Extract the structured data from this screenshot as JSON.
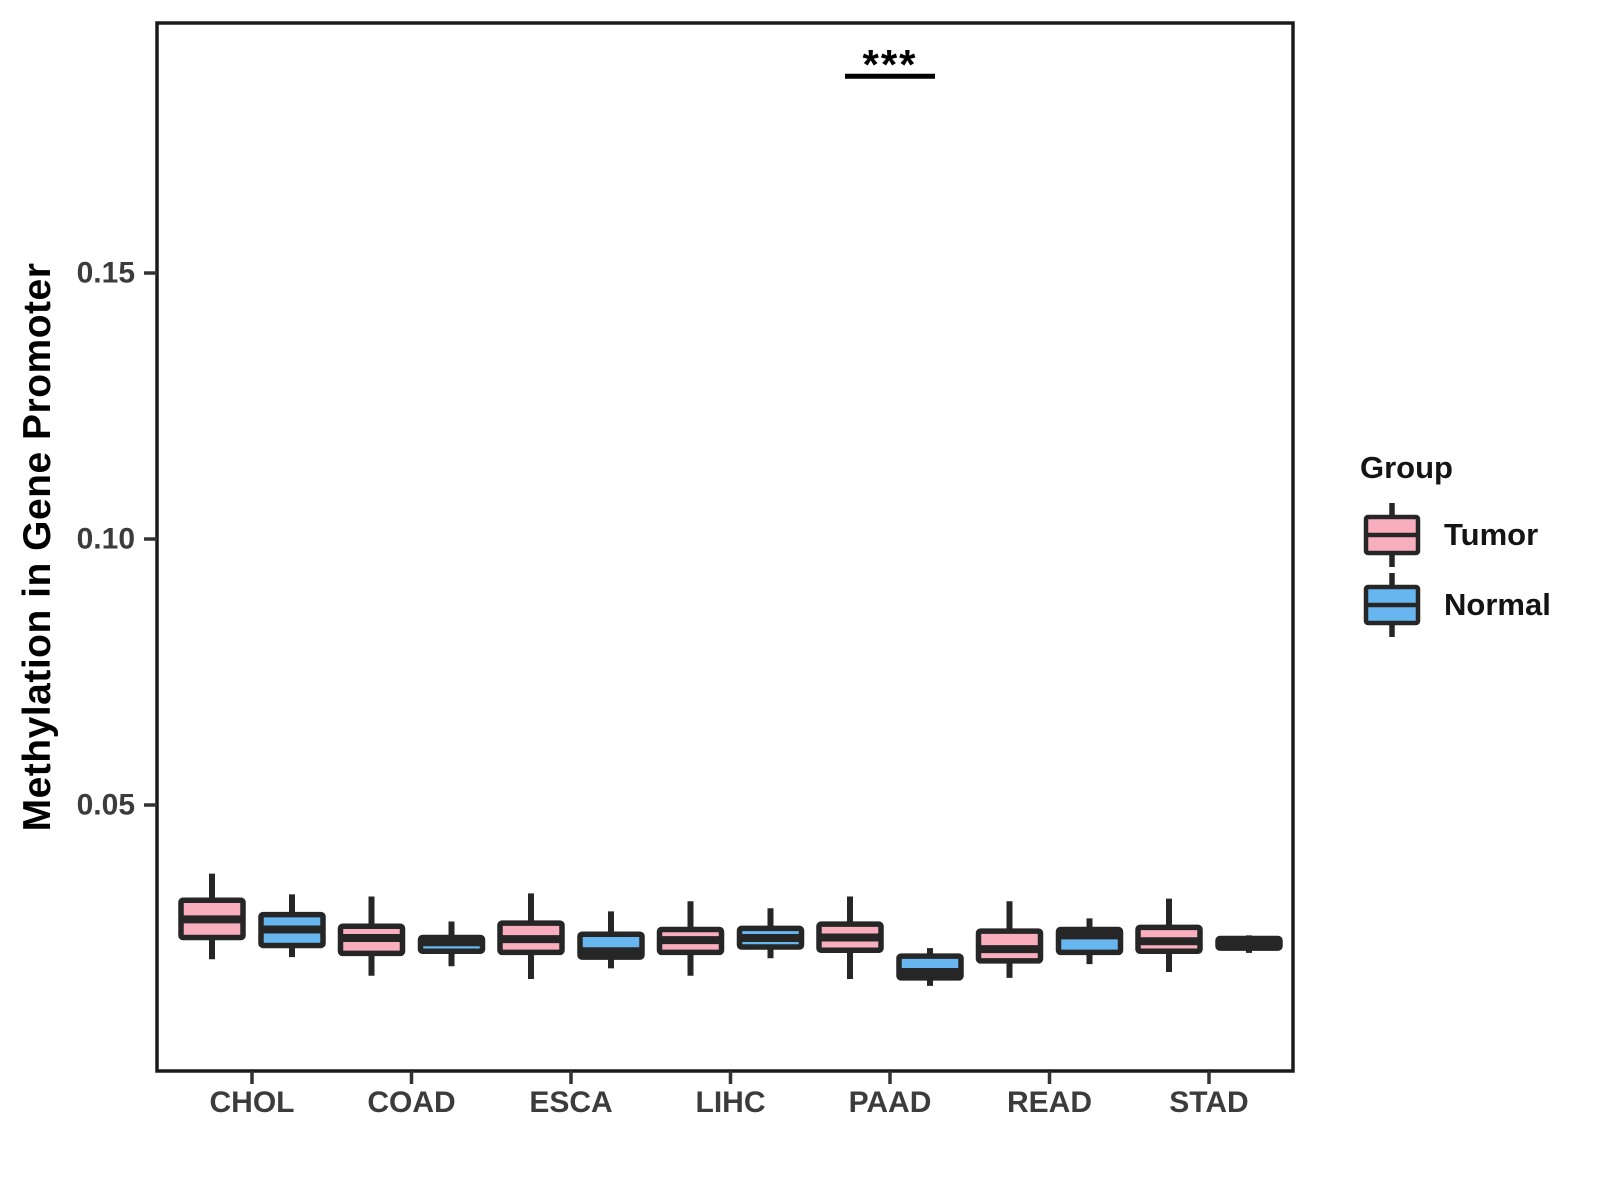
{
  "figure": {
    "y_axis_title": "Methylation in Gene Promoter",
    "legend_title": "Group"
  },
  "colors": {
    "tumor_fill": "#F9AEBD",
    "normal_fill": "#68B6F0",
    "box_outline": "#262626",
    "panel_border": "#1a1a1a",
    "tick_text": "#3c3c3c",
    "background": "#ffffff"
  },
  "chart_data": {
    "type": "boxplot",
    "title": "",
    "xlabel": "",
    "ylabel": "Methylation in Gene Promoter",
    "categories": [
      "CHOL",
      "COAD",
      "ESCA",
      "LIHC",
      "PAAD",
      "READ",
      "STAD"
    ],
    "ylim": [
      0,
      0.197
    ],
    "yticks": [
      {
        "value": 0.05,
        "label": "0.05"
      },
      {
        "value": 0.1,
        "label": "0.10"
      },
      {
        "value": 0.15,
        "label": "0.15"
      }
    ],
    "grid": false,
    "legend_title": "Group",
    "legend_position": "right",
    "series": [
      {
        "name": "Tumor",
        "color": "#F9AEBD",
        "boxes": [
          {
            "category": "CHOL",
            "whisker_low": 0.021,
            "q1": 0.0251,
            "median": 0.0285,
            "q3": 0.0321,
            "whisker_high": 0.0371
          },
          {
            "category": "COAD",
            "whisker_low": 0.0179,
            "q1": 0.0221,
            "median": 0.025,
            "q3": 0.0272,
            "whisker_high": 0.0328
          },
          {
            "category": "ESCA",
            "whisker_low": 0.0173,
            "q1": 0.0223,
            "median": 0.0248,
            "q3": 0.0278,
            "whisker_high": 0.0334
          },
          {
            "category": "LIHC",
            "whisker_low": 0.0179,
            "q1": 0.0223,
            "median": 0.0246,
            "q3": 0.0266,
            "whisker_high": 0.0319
          },
          {
            "category": "PAAD",
            "whisker_low": 0.0173,
            "q1": 0.0227,
            "median": 0.0251,
            "q3": 0.0276,
            "whisker_high": 0.0328
          },
          {
            "category": "READ",
            "whisker_low": 0.0175,
            "q1": 0.0207,
            "median": 0.0229,
            "q3": 0.0263,
            "whisker_high": 0.0319
          },
          {
            "category": "STAD",
            "whisker_low": 0.0186,
            "q1": 0.0225,
            "median": 0.0244,
            "q3": 0.027,
            "whisker_high": 0.0324
          }
        ]
      },
      {
        "name": "Normal",
        "color": "#68B6F0",
        "boxes": [
          {
            "category": "CHOL",
            "whisker_low": 0.0214,
            "q1": 0.0236,
            "median": 0.0266,
            "q3": 0.0294,
            "whisker_high": 0.0332
          },
          {
            "category": "COAD",
            "whisker_low": 0.0197,
            "q1": 0.0225,
            "median": 0.0242,
            "q3": 0.0251,
            "whisker_high": 0.0281
          },
          {
            "category": "ESCA",
            "whisker_low": 0.0193,
            "q1": 0.0214,
            "median": 0.0225,
            "q3": 0.0257,
            "whisker_high": 0.03
          },
          {
            "category": "LIHC",
            "whisker_low": 0.0212,
            "q1": 0.0233,
            "median": 0.025,
            "q3": 0.0268,
            "whisker_high": 0.0306
          },
          {
            "category": "PAAD",
            "whisker_low": 0.016,
            "q1": 0.0175,
            "median": 0.0186,
            "q3": 0.0216,
            "whisker_high": 0.0231
          },
          {
            "category": "READ",
            "whisker_low": 0.0201,
            "q1": 0.0223,
            "median": 0.0255,
            "q3": 0.0266,
            "whisker_high": 0.0287
          },
          {
            "category": "STAD",
            "whisker_low": 0.0222,
            "q1": 0.0231,
            "median": 0.024,
            "q3": 0.0249,
            "whisker_high": 0.0255
          }
        ]
      }
    ],
    "annotations": [
      {
        "label": "***",
        "category": "PAAD",
        "y": 0.187
      }
    ]
  }
}
